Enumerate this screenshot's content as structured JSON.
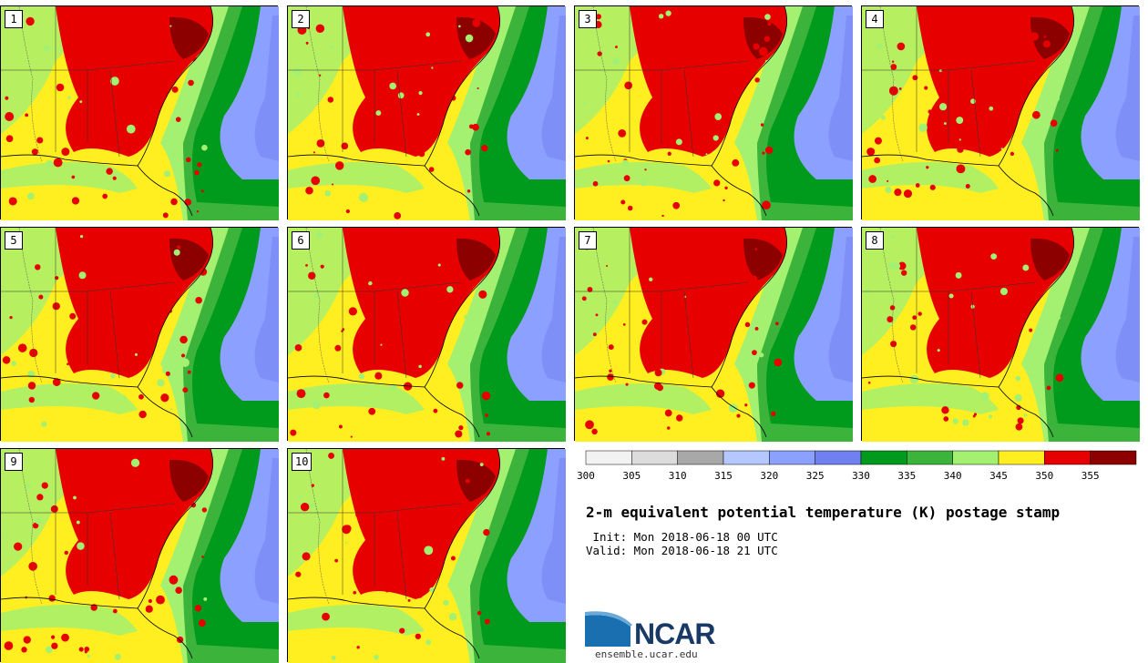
{
  "panels": [
    {
      "label": "1"
    },
    {
      "label": "2"
    },
    {
      "label": "3"
    },
    {
      "label": "4"
    },
    {
      "label": "5"
    },
    {
      "label": "6"
    },
    {
      "label": "7"
    },
    {
      "label": "8"
    },
    {
      "label": "9"
    },
    {
      "label": "10"
    }
  ],
  "colorbar": {
    "ticks": [
      "300",
      "305",
      "310",
      "315",
      "320",
      "325",
      "330",
      "335",
      "340",
      "345",
      "350",
      "355"
    ],
    "colors": [
      "#f2f2f2",
      "#dcdcdc",
      "#a8a8a8",
      "#b4c8ff",
      "#8ca0ff",
      "#7080f0",
      "#009a1c",
      "#3cb43c",
      "#a4f070",
      "#ffee20",
      "#e60000",
      "#8c0000"
    ]
  },
  "title": "2-m equivalent potential temperature (K) postage stamp",
  "init": " Init: Mon 2018-06-18 00 UTC",
  "valid": "Valid: Mon 2018-06-18 21 UTC",
  "logo": {
    "name": "NCAR",
    "site": "ensemble.ucar.edu"
  }
}
